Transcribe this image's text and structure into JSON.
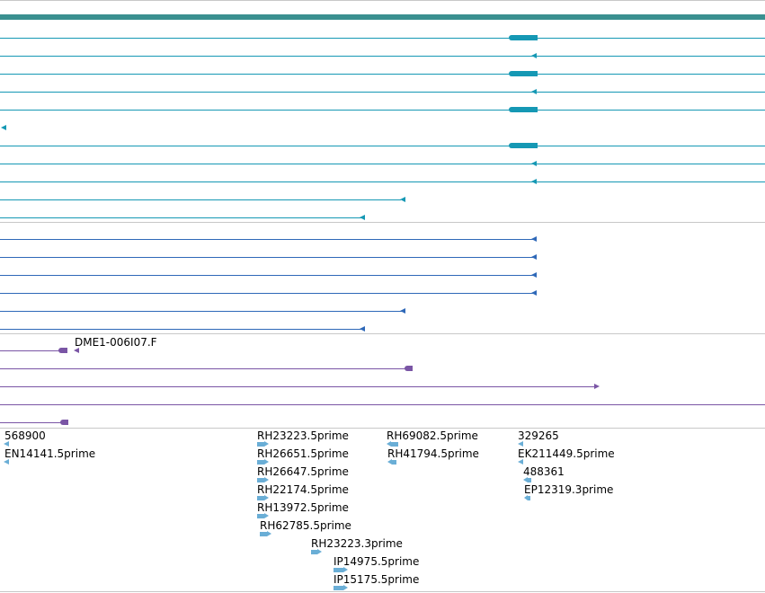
{
  "colors": {
    "transcript": "#1598b4",
    "gene_track_bar": "#3a9090",
    "cdna": "#2e68b8",
    "genomic_clone": "#7a55a5",
    "est": "#6aaed6",
    "divider": "#c8c8c8"
  },
  "tracks": {
    "transcripts": {
      "count": 11
    },
    "cdna_matches": {
      "count": 6
    },
    "genomic_clones": {
      "label": "DME1-006I07.F"
    },
    "ests": [
      {
        "label": "568900"
      },
      {
        "label": "EN14141.5prime"
      },
      {
        "label": "RH23223.5prime"
      },
      {
        "label": "RH26651.5prime"
      },
      {
        "label": "RH26647.5prime"
      },
      {
        "label": "RH22174.5prime"
      },
      {
        "label": "RH13972.5prime"
      },
      {
        "label": "RH62785.5prime"
      },
      {
        "label": "RH23223.3prime"
      },
      {
        "label": "IP14975.5prime"
      },
      {
        "label": "IP15175.5prime"
      },
      {
        "label": "RH69082.5prime"
      },
      {
        "label": "RH41794.5prime"
      },
      {
        "label": "329265"
      },
      {
        "label": "EK211449.5prime"
      },
      {
        "label": "488361"
      },
      {
        "label": "EP12319.3prime"
      }
    ]
  }
}
